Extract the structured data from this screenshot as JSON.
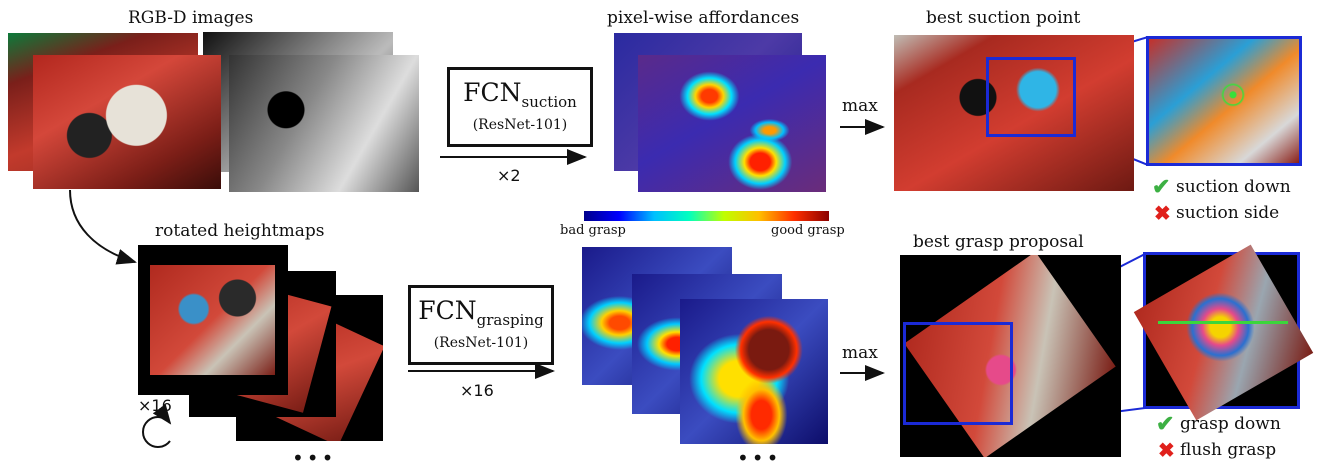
{
  "labels": {
    "rgbd": "RGB-D images",
    "affordances": "pixel-wise affordances",
    "best_suction": "best suction point",
    "heightmaps": "rotated heightmaps",
    "best_grasp": "best grasp proposal",
    "bad_grasp": "bad grasp",
    "good_grasp": "good grasp"
  },
  "fcn_suction": {
    "name": "FCN",
    "subscript": "suction",
    "backbone": "(ResNet-101)",
    "multiplier": "×2"
  },
  "fcn_grasping": {
    "name": "FCN",
    "subscript": "grasping",
    "backbone": "(ResNet-101)",
    "multiplier": "×16"
  },
  "max_labels": {
    "top": "max",
    "bottom": "max"
  },
  "rotations": "×16",
  "ellipsis": "•••",
  "suction_results": {
    "good": "suction down",
    "bad": "suction side"
  },
  "grasp_results": {
    "good": "grasp down",
    "bad": "flush grasp"
  },
  "colors": {
    "accent_blue": "#1b2ad6",
    "check": "#3cb043",
    "cross": "#e0201b"
  }
}
